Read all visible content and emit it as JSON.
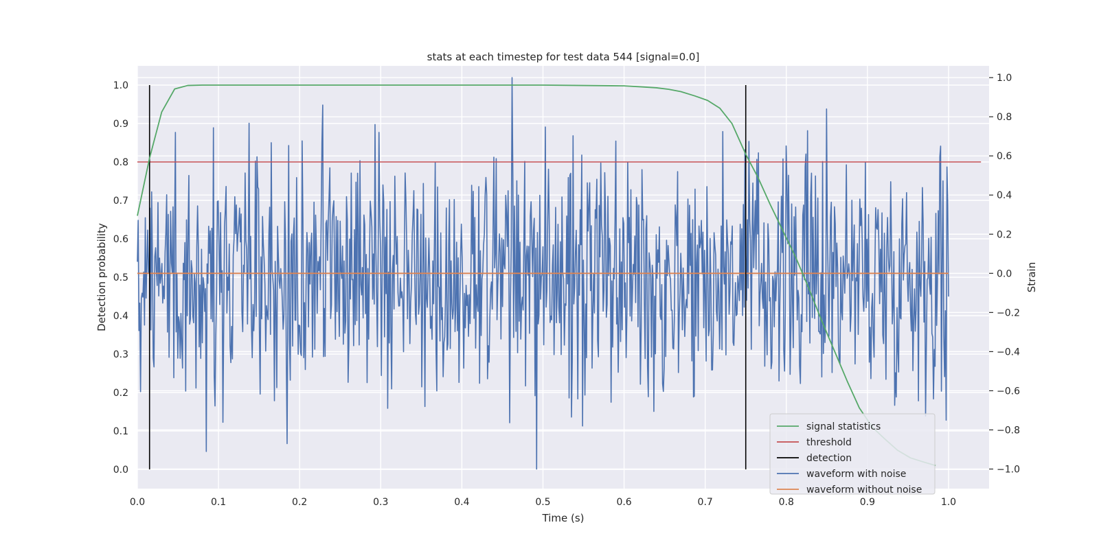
{
  "chart_data": {
    "type": "line",
    "title": "stats at each timestep for test data 544 [signal=0.0]",
    "xlabel": "Time (s)",
    "ylabel": "Detection probability",
    "y2label": "Strain",
    "xlim": [
      0.0,
      1.05
    ],
    "ylim": [
      -0.05,
      1.05
    ],
    "y2lim": [
      -1.1,
      1.06
    ],
    "xticks": [
      "0.0",
      "0.1",
      "0.2",
      "0.3",
      "0.4",
      "0.5",
      "0.6",
      "0.7",
      "0.8",
      "0.9",
      "1.0"
    ],
    "yticks": [
      "0.0",
      "0.1",
      "0.2",
      "0.3",
      "0.4",
      "0.5",
      "0.6",
      "0.7",
      "0.8",
      "0.9",
      "1.0"
    ],
    "y2ticks": [
      "−1.0",
      "−0.8",
      "−0.6",
      "−0.4",
      "−0.2",
      "0.0",
      "0.2",
      "0.4",
      "0.6",
      "0.8",
      "1.0"
    ],
    "grid": true,
    "legend_position": "lower-right",
    "legend": [
      "signal statistics",
      "threshold",
      "detection",
      "waveform with noise",
      "waveform without noise"
    ],
    "colors": {
      "signal_statistics": "#55a868",
      "threshold": "#c44e52",
      "detection": "#000000",
      "waveform_with_noise": "#4c72b0",
      "waveform_without_noise": "#dd8452",
      "plot_background": "#eaeaf2",
      "grid": "#ffffff"
    },
    "signal_statistics": {
      "x": [
        0.0,
        0.015,
        0.03,
        0.046,
        0.062,
        0.08,
        0.1,
        0.2,
        0.3,
        0.4,
        0.5,
        0.55,
        0.6,
        0.625,
        0.64,
        0.655,
        0.67,
        0.687,
        0.703,
        0.718,
        0.733,
        0.75,
        0.765,
        0.78,
        0.796,
        0.812,
        0.828,
        0.843,
        0.859,
        0.875,
        0.89,
        0.906,
        0.921,
        0.937,
        0.953,
        0.968,
        0.984
      ],
      "y": [
        0.66,
        0.81,
        0.93,
        0.99,
        0.999,
        1.0,
        1.0,
        1.0,
        1.0,
        1.0,
        1.0,
        0.999,
        0.998,
        0.995,
        0.993,
        0.989,
        0.983,
        0.972,
        0.96,
        0.94,
        0.9,
        0.82,
        0.76,
        0.69,
        0.62,
        0.55,
        0.47,
        0.39,
        0.31,
        0.23,
        0.16,
        0.11,
        0.08,
        0.05,
        0.03,
        0.02,
        0.01
      ]
    },
    "threshold": {
      "y": 0.8,
      "x": [
        0.0,
        1.04
      ]
    },
    "detections": [
      {
        "x": 0.015,
        "y_range": [
          0.0,
          1.0
        ]
      },
      {
        "x": 0.75,
        "y_range": [
          0.0,
          1.0
        ]
      }
    ],
    "waveform_without_noise": {
      "x": [
        0.0,
        1.0
      ],
      "strain": 0.0
    },
    "waveform_with_noise": {
      "sample_rate_hz": 1024,
      "strain_range": [
        -1.0,
        1.0
      ],
      "max_strain_at_s": 0.462,
      "min_strain_at_s": 0.492,
      "peaks": [
        {
          "x": 0.047,
          "strain": 0.72
        },
        {
          "x": 0.229,
          "strain": 0.86
        },
        {
          "x": 0.462,
          "strain": 1.0
        },
        {
          "x": 0.85,
          "strain": 0.84
        },
        {
          "x": 0.99,
          "strain": 0.65
        }
      ],
      "troughs": [
        {
          "x": 0.085,
          "strain": -0.91
        },
        {
          "x": 0.185,
          "strain": -0.87
        },
        {
          "x": 0.492,
          "strain": -1.0
        },
        {
          "x": 0.997,
          "strain": -0.75
        }
      ],
      "typical_amplitude": 0.3
    }
  }
}
